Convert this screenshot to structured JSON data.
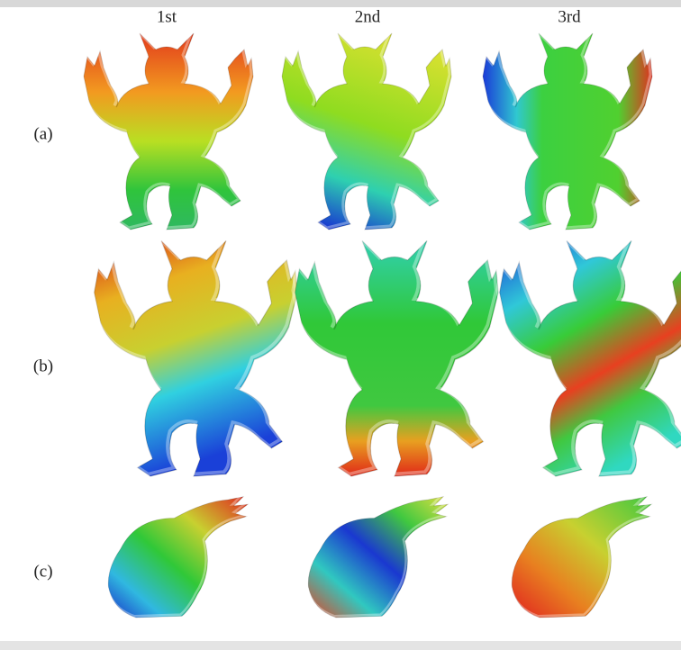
{
  "columns": [
    "1st",
    "2nd",
    "3rd"
  ],
  "rows": [
    "(a)",
    "(b)",
    "(c)"
  ]
}
